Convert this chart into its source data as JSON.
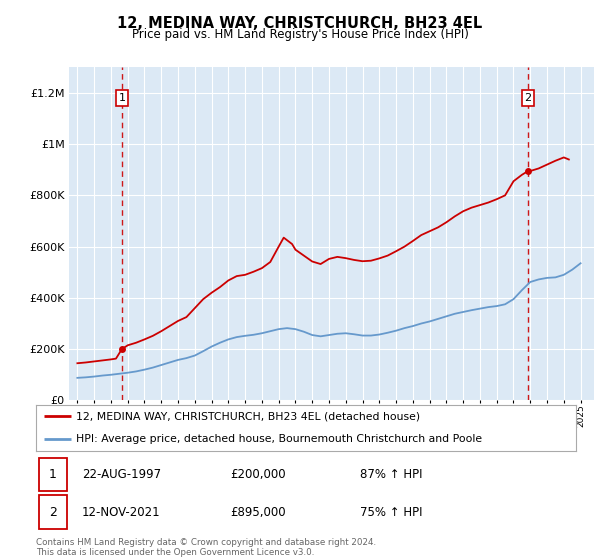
{
  "title": "12, MEDINA WAY, CHRISTCHURCH, BH23 4EL",
  "subtitle": "Price paid vs. HM Land Registry's House Price Index (HPI)",
  "bg_color": "#dce9f5",
  "red_color": "#cc0000",
  "blue_color": "#6699cc",
  "grid_color": "#ffffff",
  "sale1_date": 1997.65,
  "sale1_price": 200000,
  "sale2_date": 2021.87,
  "sale2_price": 895000,
  "legend_label1": "12, MEDINA WAY, CHRISTCHURCH, BH23 4EL (detached house)",
  "legend_label2": "HPI: Average price, detached house, Bournemouth Christchurch and Poole",
  "row1_num": "1",
  "row1_date": "22-AUG-1997",
  "row1_price": "£200,000",
  "row1_hpi": "87% ↑ HPI",
  "row2_num": "2",
  "row2_date": "12-NOV-2021",
  "row2_price": "£895,000",
  "row2_hpi": "75% ↑ HPI",
  "footer": "Contains HM Land Registry data © Crown copyright and database right 2024.\nThis data is licensed under the Open Government Licence v3.0.",
  "ylim": [
    0,
    1300000
  ],
  "ytick_max": 1200000,
  "ytick_step": 200000,
  "xlim_start": 1994.5,
  "xlim_end": 2025.8,
  "xtick_start": 1995,
  "xtick_end": 2025
}
